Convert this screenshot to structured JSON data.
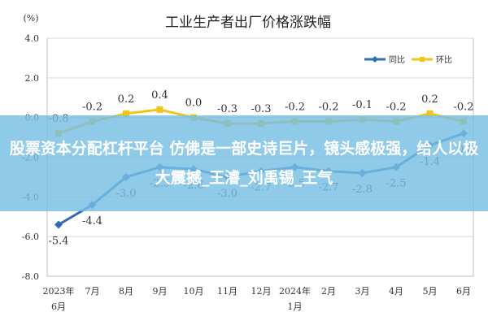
{
  "chart_data": {
    "type": "line",
    "title": "工业生产者出厂价格涨跌幅",
    "ylabel": "(%)",
    "ylim": [
      -8.0,
      4.0
    ],
    "yticks": [
      "4.0",
      "2.0",
      "0.0",
      "-2.0",
      "-4.0",
      "-6.0",
      "-8.0"
    ],
    "categories": [
      "2023年6月",
      "7月",
      "8月",
      "9月",
      "10月",
      "11月",
      "12月",
      "2024年1月",
      "2月",
      "3月",
      "4月",
      "5月",
      "6月"
    ],
    "category_lines": [
      [
        "2023年",
        "6月"
      ],
      [
        "7月"
      ],
      [
        "8月"
      ],
      [
        "9月"
      ],
      [
        "10月"
      ],
      [
        "11月"
      ],
      [
        "12月"
      ],
      [
        "2024年",
        "1月"
      ],
      [
        "2月"
      ],
      [
        "3月"
      ],
      [
        "4月"
      ],
      [
        "5月"
      ],
      [
        "6月"
      ]
    ],
    "legend_position": "top-right",
    "grid": "horizontal",
    "series": [
      {
        "name": "同比",
        "color": "#2e6db4",
        "values": [
          -5.4,
          -4.4,
          -3.0,
          -2.5,
          -2.6,
          -3.0,
          -2.7,
          -2.5,
          -2.7,
          -2.8,
          -2.5,
          -1.4,
          -0.8
        ],
        "labels": [
          "-5.4",
          "-4.4",
          "-3.0",
          "-2.5",
          "-2.6",
          "-3.0",
          "-2.7",
          "-2.5",
          "-2.7",
          "-2.8",
          "-2.5",
          "-1.4",
          "-0.8"
        ]
      },
      {
        "name": "环比",
        "color": "#f0c419",
        "values": [
          -0.8,
          -0.2,
          0.2,
          0.4,
          0.0,
          -0.3,
          -0.3,
          -0.2,
          -0.2,
          -0.1,
          -0.2,
          0.2,
          -0.2
        ],
        "labels": [
          "-0.8",
          "-0.2",
          "0.2",
          "0.4",
          "0.0",
          "-0.3",
          "-0.3",
          "-0.2",
          "-0.2",
          "-0.1",
          "-0.2",
          "0.2",
          "-0.2"
        ]
      }
    ]
  },
  "overlay": {
    "text": "股票资本分配杠杆平台 仿佛是一部史诗巨片，镜头感极强，给人以极大震撼_王濬_刘禹锡_王气",
    "color": "#78bee4"
  }
}
